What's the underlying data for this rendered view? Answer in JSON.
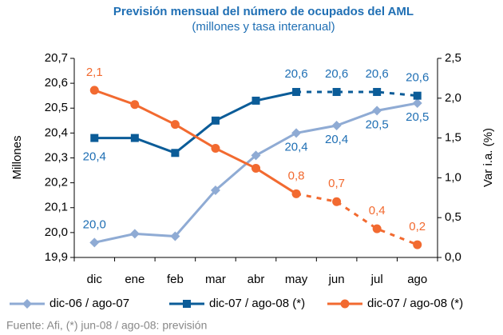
{
  "chart_data": {
    "type": "line",
    "title": "Previsión mensual del número de ocupados del AML",
    "subtitle": "(millones y tasa interanual)",
    "y_label": "Millones",
    "y2_label": "Var i.a. (%)",
    "source": "Fuente: Afi, (*) jun-08 / ago-08: previsión",
    "categories": [
      "dic",
      "ene",
      "feb",
      "mar",
      "abr",
      "may",
      "jun",
      "jul",
      "ago"
    ],
    "dash_from": "may",
    "series": [
      {
        "name": "dic-06 / ago-07",
        "color": "#8fabd4",
        "marker": "diamond",
        "values": [
          19.96,
          19.995,
          19.985,
          20.17,
          20.31,
          20.4,
          20.43,
          20.49,
          20.52
        ],
        "value_labels": [
          "20,0",
          null,
          null,
          null,
          null,
          "20,4",
          "20,4",
          "20,5",
          "20,5"
        ]
      },
      {
        "name": "dic-07 / ago-08 (*)",
        "color": "#0b5c98",
        "marker": "square",
        "values": [
          20.38,
          20.38,
          20.32,
          20.45,
          20.53,
          20.565,
          20.565,
          20.565,
          20.55
        ],
        "value_labels": [
          "20,4",
          null,
          null,
          null,
          null,
          "20,6",
          "20,6",
          "20,6",
          "20,6"
        ]
      },
      {
        "name": "dic-07 / ago-08 (*)",
        "color": "#f26a30",
        "marker": "circle",
        "axis": "y2",
        "values": [
          2.1,
          1.92,
          1.67,
          1.37,
          1.12,
          0.8,
          0.7,
          0.36,
          0.16
        ],
        "value_labels": [
          "2,1",
          null,
          null,
          null,
          null,
          "0,8",
          "0,7",
          "0,4",
          "0,2"
        ]
      }
    ],
    "ylim": [
      19.9,
      20.7
    ],
    "yticks": [
      {
        "value": 19.9,
        "label": "19,9"
      },
      {
        "value": 20.0,
        "label": "20,0"
      },
      {
        "value": 20.1,
        "label": "20,1"
      },
      {
        "value": 20.2,
        "label": "20,2"
      },
      {
        "value": 20.3,
        "label": "20,3"
      },
      {
        "value": 20.4,
        "label": "20,4"
      },
      {
        "value": 20.5,
        "label": "20,5"
      },
      {
        "value": 20.6,
        "label": "20,6"
      },
      {
        "value": 20.7,
        "label": "20,7"
      }
    ],
    "y2lim": [
      0,
      2.5
    ],
    "y2ticks": [
      {
        "value": 0,
        "label": "0,0"
      },
      {
        "value": 0.5,
        "label": "0,5"
      },
      {
        "value": 1.0,
        "label": "1,0"
      },
      {
        "value": 1.5,
        "label": "1,5"
      },
      {
        "value": 2.0,
        "label": "2,0"
      },
      {
        "value": 2.5,
        "label": "2,5"
      }
    ],
    "grid": false,
    "legend": "bottom"
  }
}
